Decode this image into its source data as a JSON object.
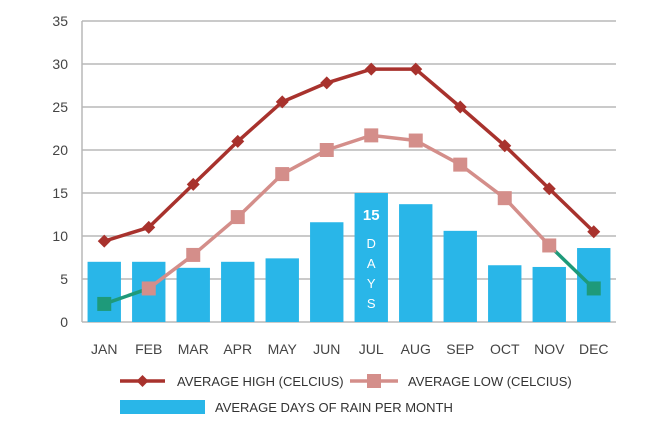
{
  "chart_data": {
    "type": "bar",
    "categories": [
      "JAN",
      "FEB",
      "MAR",
      "APR",
      "MAY",
      "JUN",
      "JUL",
      "AUG",
      "SEP",
      "OCT",
      "NOV",
      "DEC"
    ],
    "ylim": [
      0,
      35
    ],
    "yticks": [
      "0",
      "5",
      "10",
      "15",
      "20",
      "25",
      "30",
      "35"
    ],
    "grid": true,
    "legend_placement": "bottom",
    "series": [
      {
        "name": "AVERAGE DAYS OF RAIN PER MONTH",
        "kind": "bar",
        "color": "#29b6e8",
        "values": [
          7,
          7,
          6.3,
          7,
          7.4,
          11.6,
          15,
          13.7,
          10.6,
          6.6,
          6.4,
          8.6
        ]
      },
      {
        "name": "AVERAGE HIGH (CELCIUS)",
        "kind": "line",
        "color": "#a8322d",
        "values": [
          9.4,
          11,
          16,
          21,
          25.6,
          27.8,
          29.4,
          29.4,
          25,
          20.5,
          15.5,
          10.5
        ]
      },
      {
        "name": "AVERAGE LOW (CELCIUS)",
        "kind": "line",
        "color": "#d48e8a",
        "values": [
          2.1,
          3.9,
          7.8,
          12.2,
          17.2,
          20,
          21.7,
          21.1,
          18.3,
          14.4,
          8.9,
          3.9
        ]
      }
    ],
    "annotation": {
      "category": "JUL",
      "value_label": "15",
      "unit_label": "DAYS"
    },
    "low_segment_color": "#1e9a7a"
  }
}
